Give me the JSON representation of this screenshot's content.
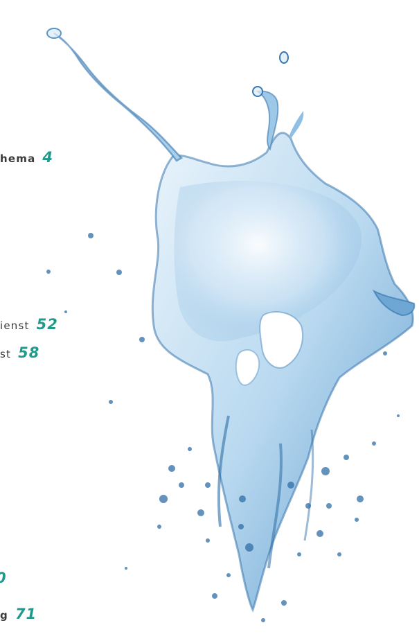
{
  "colors": {
    "page_number": "#1f9a8c",
    "text": "#3a3a3a",
    "water_light": "#dcecf8",
    "water_mid": "#8fc2e6",
    "water_dark": "#2f6ea6"
  },
  "background_image": {
    "icon": "water-splash-icon"
  },
  "toc_entries": [
    {
      "text": "hema",
      "page": "4"
    },
    {
      "text": "ienst",
      "page": "52"
    },
    {
      "text": "st",
      "page": "58"
    },
    {
      "text": "",
      "page": "0"
    },
    {
      "text": "g",
      "page": "71"
    }
  ]
}
